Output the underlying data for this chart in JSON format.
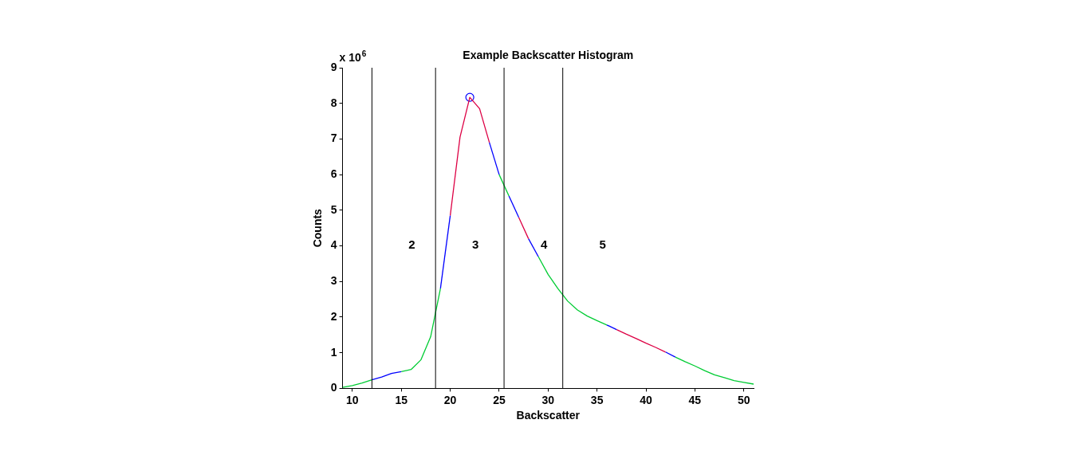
{
  "chart_data": {
    "type": "line",
    "title": "Example Backscatter Histogram",
    "xlabel": "Backscatter",
    "ylabel": "Counts",
    "xlim": [
      9,
      51
    ],
    "xticks": [
      10,
      15,
      20,
      25,
      30,
      35,
      40,
      45,
      50
    ],
    "ylim": [
      0,
      9
    ],
    "yticks": [
      0,
      1,
      2,
      3,
      4,
      5,
      6,
      7,
      8,
      9
    ],
    "grid": false,
    "legend": false,
    "series": [
      {
        "color": "#00cc33",
        "x": [
          9,
          10,
          11,
          12
        ],
        "values": [
          0.03,
          0.08,
          0.15,
          0.24
        ]
      },
      {
        "color": "#0000ff",
        "x": [
          12,
          13,
          14,
          15
        ],
        "values": [
          0.24,
          0.32,
          0.42,
          0.47
        ]
      },
      {
        "color": "#00cc33",
        "x": [
          15,
          16,
          17,
          18,
          19
        ],
        "values": [
          0.47,
          0.53,
          0.8,
          1.45,
          2.8
        ]
      },
      {
        "color": "#0000ff",
        "x": [
          19,
          20
        ],
        "values": [
          2.8,
          4.85
        ]
      },
      {
        "color": "#dd0044",
        "x": [
          20,
          21,
          22,
          23,
          24
        ],
        "values": [
          4.85,
          7.05,
          8.17,
          7.85,
          6.9
        ]
      },
      {
        "color": "#0000ff",
        "x": [
          24,
          25
        ],
        "values": [
          6.9,
          6.0
        ]
      },
      {
        "color": "#00cc33",
        "x": [
          25,
          26
        ],
        "values": [
          6.0,
          5.4
        ]
      },
      {
        "color": "#0000ff",
        "x": [
          26,
          27
        ],
        "values": [
          5.4,
          4.8
        ]
      },
      {
        "color": "#dd0044",
        "x": [
          27,
          28
        ],
        "values": [
          4.8,
          4.2
        ]
      },
      {
        "color": "#0000ff",
        "x": [
          28,
          29
        ],
        "values": [
          4.2,
          3.7
        ]
      },
      {
        "color": "#00cc33",
        "x": [
          29,
          30,
          31,
          32,
          33,
          34,
          35,
          36
        ],
        "values": [
          3.7,
          3.2,
          2.8,
          2.45,
          2.2,
          2.03,
          1.9,
          1.78
        ]
      },
      {
        "color": "#0000ff",
        "x": [
          36,
          37
        ],
        "values": [
          1.78,
          1.65
        ]
      },
      {
        "color": "#dd0044",
        "x": [
          37,
          38,
          39,
          40,
          41,
          42
        ],
        "values": [
          1.65,
          1.52,
          1.4,
          1.27,
          1.15,
          1.02
        ]
      },
      {
        "color": "#0000ff",
        "x": [
          42,
          43
        ],
        "values": [
          1.02,
          0.88
        ]
      },
      {
        "color": "#00cc33",
        "x": [
          43,
          44,
          45,
          46,
          47,
          48,
          49,
          50,
          51
        ],
        "values": [
          0.88,
          0.75,
          0.63,
          0.5,
          0.38,
          0.3,
          0.22,
          0.17,
          0.12
        ]
      },
      {
        "type": "scatter",
        "marker": "circle",
        "color": "#0000ff",
        "x": [
          22
        ],
        "values": [
          8.17
        ]
      }
    ],
    "ref_lines": [
      {
        "axis": "x",
        "value": 12,
        "color": "#000000"
      },
      {
        "axis": "x",
        "value": 18.5,
        "color": "#000000"
      },
      {
        "axis": "x",
        "value": 25.5,
        "color": "#000000"
      },
      {
        "axis": "x",
        "value": 31.5,
        "color": "#000000"
      }
    ],
    "annotations": [
      "x 10$^{6}$",
      "2",
      "3",
      "4",
      "5"
    ]
  }
}
